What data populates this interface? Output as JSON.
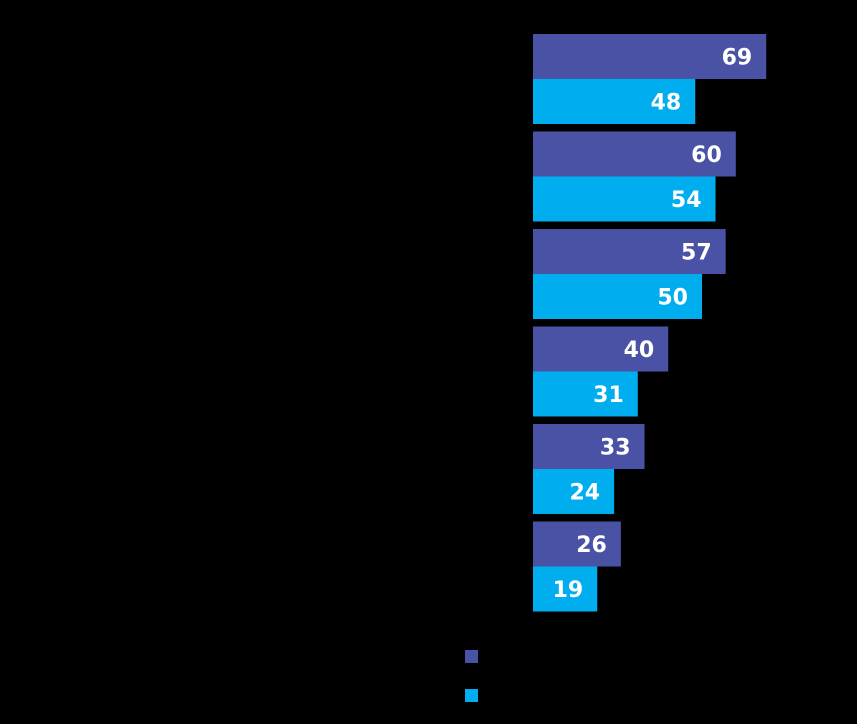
{
  "chart_data": {
    "type": "bar",
    "orientation": "horizontal",
    "title": "",
    "xlabel": "",
    "ylabel": "",
    "categories": [
      "",
      "",
      "",
      "",
      "",
      ""
    ],
    "series": [
      {
        "values": [
          69,
          60,
          57,
          40,
          33,
          26
        ],
        "color": "#4a52a6"
      },
      {
        "values": [
          48,
          54,
          50,
          31,
          24,
          19
        ],
        "color": "#00adef"
      }
    ],
    "xlim": [
      0,
      100
    ],
    "grid": false,
    "legend_position": "bottom",
    "data_labels": true
  }
}
